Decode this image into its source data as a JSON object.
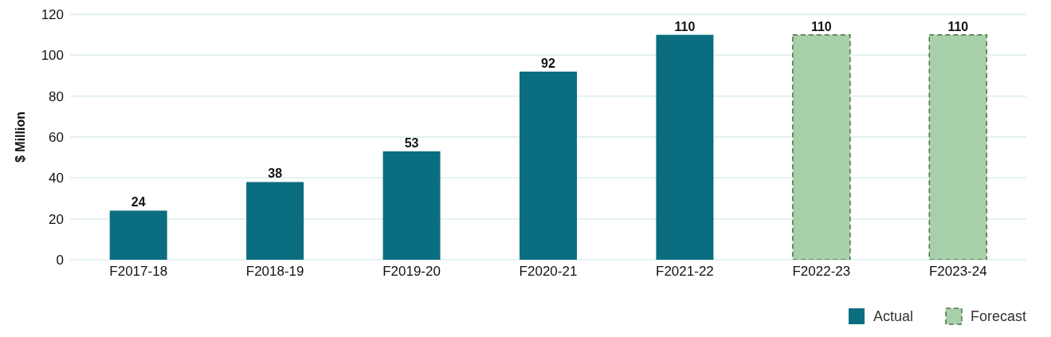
{
  "chart_data": {
    "type": "bar",
    "ylabel": "$ Million",
    "categories": [
      "F2017-18",
      "F2018-19",
      "F2019-20",
      "F2020-21",
      "F2021-22",
      "F2022-23",
      "F2023-24"
    ],
    "series": [
      {
        "name": "Actual",
        "color": "#0b6e80",
        "values": [
          24,
          38,
          53,
          92,
          110,
          null,
          null
        ]
      },
      {
        "name": "Forecast",
        "color": "#a9d1a9",
        "line_style": "dashed",
        "values": [
          null,
          null,
          null,
          null,
          null,
          110,
          110
        ]
      }
    ],
    "stacked": true,
    "ylim": [
      0,
      120
    ],
    "yticks": [
      0,
      20,
      40,
      60,
      80,
      100,
      120
    ],
    "grid": "y",
    "data_labels": true,
    "legend": "bottom right"
  }
}
